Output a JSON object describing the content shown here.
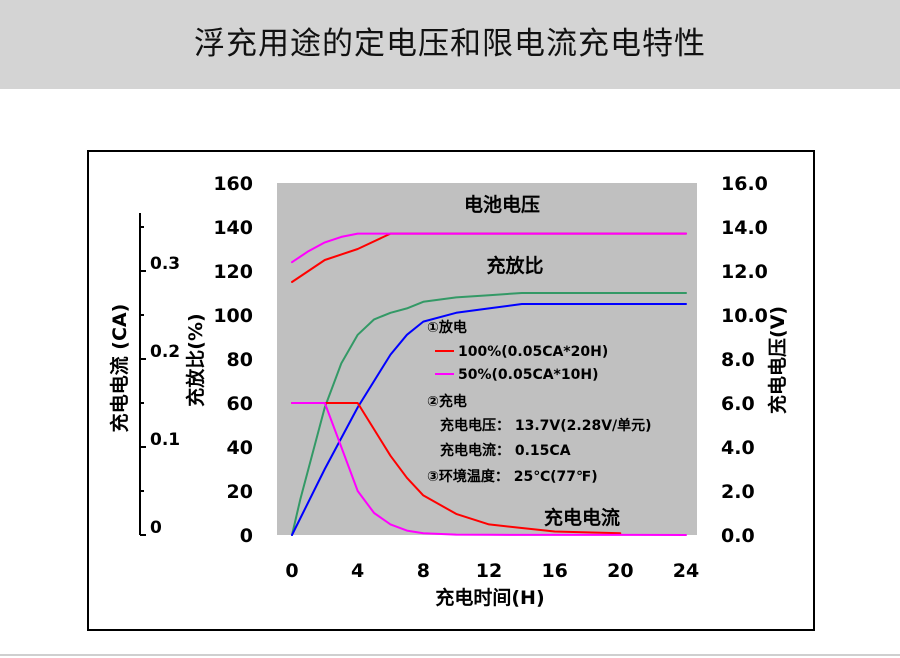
{
  "page": {
    "title": "浮充用途的定电压和限电流充电特性"
  },
  "chart_data": {
    "type": "line",
    "xlabel": "充电时间(H)",
    "xlim": [
      0,
      24
    ],
    "x_ticks": [
      "0",
      "4",
      "8",
      "12",
      "16",
      "20",
      "24"
    ],
    "y_left_outer": {
      "label": "充电电流 (CA)",
      "ticks": [
        "0",
        "0.1",
        "0.2",
        "0.3"
      ],
      "lim": [
        0,
        0.4
      ]
    },
    "y_left_inner": {
      "label": "充放比(%)",
      "ticks": [
        "0",
        "20",
        "40",
        "60",
        "80",
        "100",
        "120",
        "140",
        "160"
      ],
      "lim": [
        0,
        160
      ]
    },
    "y_right": {
      "label": "充电电压(V)",
      "ticks": [
        "0.0",
        "2.0",
        "4.0",
        "6.0",
        "8.0",
        "10.0",
        "12.0",
        "14.0",
        "16.0"
      ],
      "lim": [
        0,
        16
      ]
    },
    "curve_labels": {
      "voltage": "电池电压",
      "ratio": "充放比",
      "current": "充电电流"
    },
    "notes": {
      "discharge_heading": "①放电",
      "legend_red": "100%(0.05CA*20H)",
      "legend_magenta": "50%(0.05CA*10H)",
      "charge_heading": "②充电",
      "charge_voltage": "充电电压： 13.7V(2.28V/单元)",
      "charge_current": "充电电流： 0.15CA",
      "temperature": "③环境温度： 25℃(77℉)"
    },
    "colors": {
      "plot_bg": "#c0c0c0",
      "red": "#ff0000",
      "magenta": "#ff00ff",
      "green": "#339966",
      "blue": "#0000ff"
    },
    "series": [
      {
        "group": "voltage",
        "color": "red",
        "axis": "right",
        "x": [
          0,
          2,
          4,
          6,
          8,
          12,
          16,
          20,
          24
        ],
        "y": [
          11.5,
          12.5,
          13.0,
          13.7,
          13.7,
          13.7,
          13.7,
          13.7,
          13.7
        ]
      },
      {
        "group": "voltage",
        "color": "magenta",
        "axis": "right",
        "x": [
          0,
          1,
          2,
          3,
          4,
          6,
          8,
          12,
          16,
          20,
          24
        ],
        "y": [
          12.4,
          12.9,
          13.3,
          13.55,
          13.7,
          13.7,
          13.7,
          13.7,
          13.7,
          13.7,
          13.7
        ]
      },
      {
        "group": "ratio",
        "color": "green",
        "axis": "left_inner",
        "x": [
          0,
          0.5,
          1,
          2,
          3,
          4,
          5,
          6,
          7,
          8,
          10,
          12,
          14,
          16,
          20,
          24
        ],
        "y": [
          0,
          16,
          30,
          58,
          78,
          91,
          98,
          101,
          103,
          106,
          108,
          109,
          110,
          110,
          110,
          110
        ]
      },
      {
        "group": "ratio",
        "color": "blue",
        "axis": "left_inner",
        "x": [
          0,
          2,
          4,
          6,
          7,
          8,
          10,
          12,
          14,
          16,
          20,
          24
        ],
        "y": [
          0,
          30,
          58,
          82,
          91,
          97,
          101,
          103,
          105,
          105,
          105,
          105
        ]
      },
      {
        "group": "current",
        "color": "red",
        "axis": "left_outer",
        "x": [
          0,
          2,
          4,
          5,
          6,
          7,
          8,
          10,
          12,
          14,
          16,
          18,
          20
        ],
        "y": [
          0.15,
          0.15,
          0.15,
          0.12,
          0.09,
          0.065,
          0.045,
          0.024,
          0.012,
          0.008,
          0.004,
          0.003,
          0.002
        ]
      },
      {
        "group": "current",
        "color": "magenta",
        "axis": "left_outer",
        "x": [
          0,
          2,
          3,
          4,
          5,
          6,
          7,
          8,
          10,
          12,
          16,
          20,
          24
        ],
        "y": [
          0.15,
          0.15,
          0.1,
          0.05,
          0.025,
          0.012,
          0.005,
          0.002,
          0.0005,
          0.0002,
          0.0001,
          0.0001,
          0
        ]
      }
    ]
  }
}
